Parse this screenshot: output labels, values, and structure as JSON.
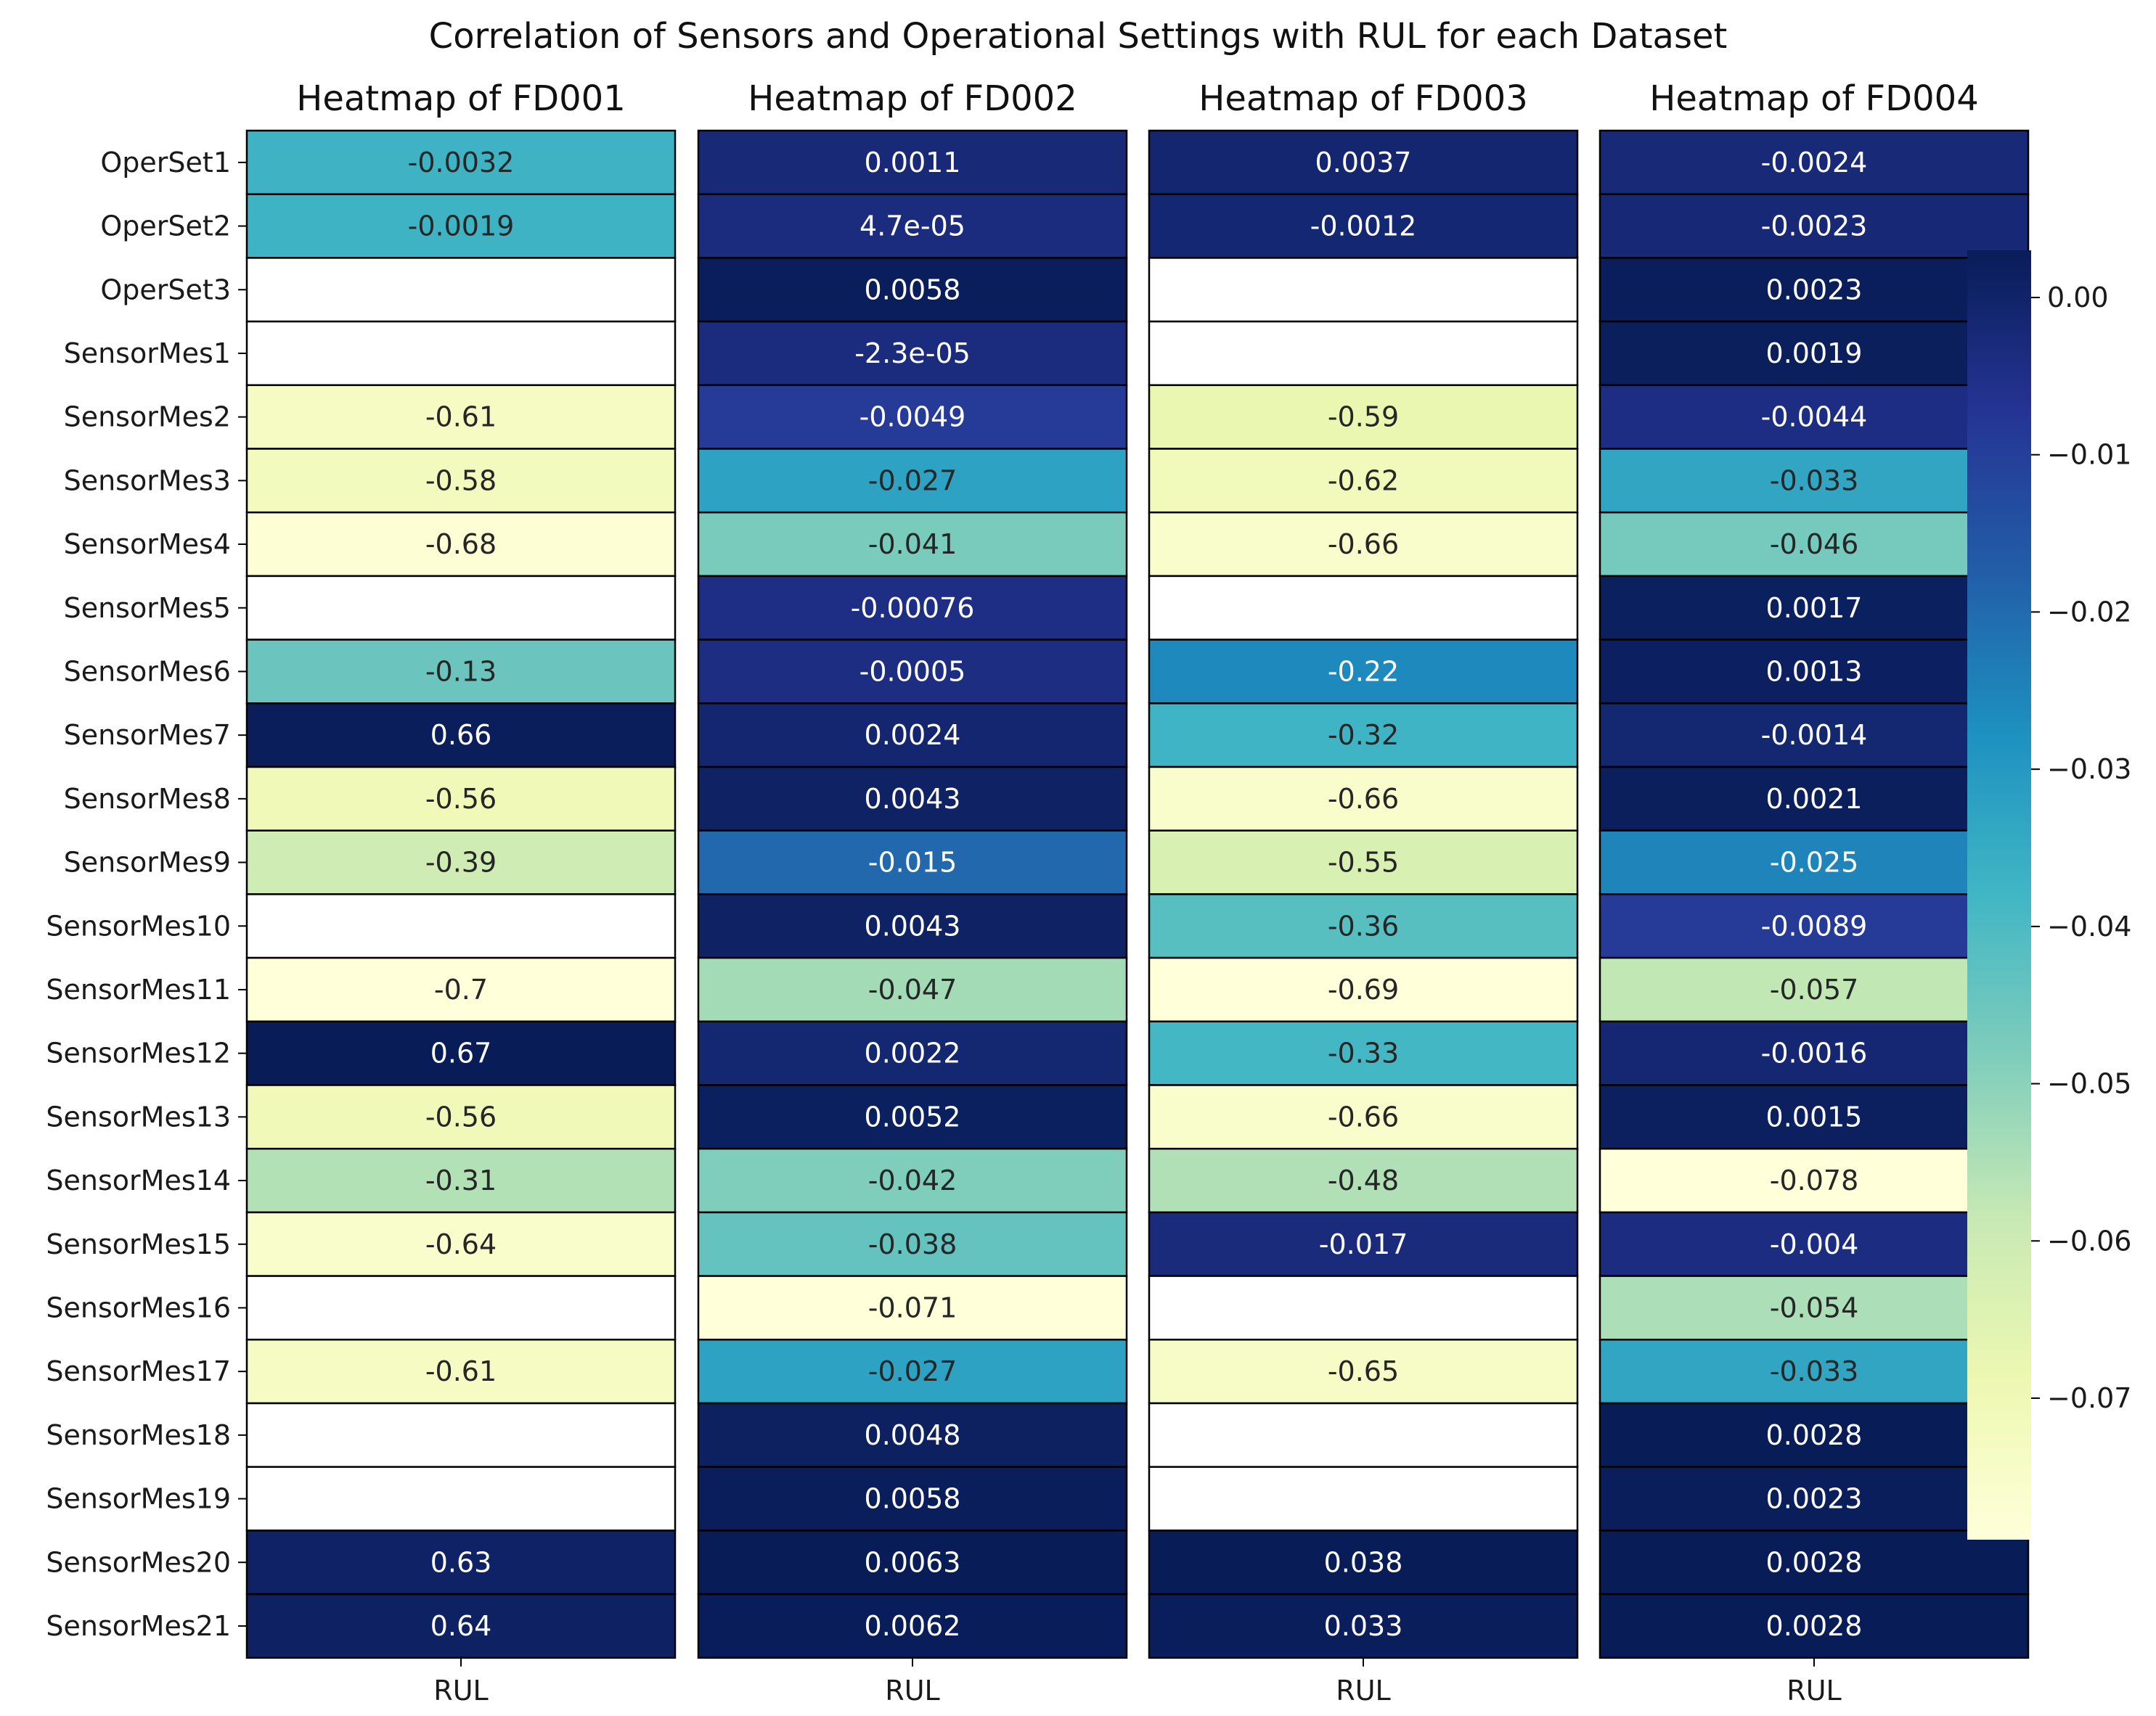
{
  "chart_data": {
    "type": "heatmap",
    "title": "Correlation of Sensors and Operational Settings with RUL for each Dataset",
    "rows": [
      "OperSet1",
      "OperSet2",
      "OperSet3",
      "SensorMes1",
      "SensorMes2",
      "SensorMes3",
      "SensorMes4",
      "SensorMes5",
      "SensorMes6",
      "SensorMes7",
      "SensorMes8",
      "SensorMes9",
      "SensorMes10",
      "SensorMes11",
      "SensorMes12",
      "SensorMes13",
      "SensorMes14",
      "SensorMes15",
      "SensorMes16",
      "SensorMes17",
      "SensorMes18",
      "SensorMes19",
      "SensorMes20",
      "SensorMes21"
    ],
    "colormap": {
      "name": "YlGnBu",
      "stops": [
        "#ffffd9",
        "#edf8b1",
        "#c7e9b4",
        "#7fcdbb",
        "#41b6c4",
        "#1d91c0",
        "#225ea8",
        "#253494",
        "#081d58"
      ]
    },
    "colorbar": {
      "range": [
        -0.079,
        0.003
      ],
      "ticks": [
        0.0,
        -0.01,
        -0.02,
        -0.03,
        -0.04,
        -0.05,
        -0.06,
        -0.07
      ],
      "tick_labels": [
        "0.00",
        "−0.01",
        "−0.02",
        "−0.03",
        "−0.04",
        "−0.05",
        "−0.06",
        "−0.07"
      ]
    },
    "panels": [
      {
        "title": "Heatmap of FD001",
        "xlabel": "RUL",
        "vmin": -0.7,
        "vmax": 0.67,
        "values": [
          -0.0032,
          -0.0019,
          null,
          null,
          -0.61,
          -0.58,
          -0.68,
          null,
          -0.13,
          0.66,
          -0.56,
          -0.39,
          null,
          -0.7,
          0.67,
          -0.56,
          -0.31,
          -0.64,
          null,
          -0.61,
          null,
          null,
          0.63,
          0.64
        ],
        "labels": [
          "-0.0032",
          "-0.0019",
          "",
          "",
          "-0.61",
          "-0.58",
          "-0.68",
          "",
          "-0.13",
          "0.66",
          "-0.56",
          "-0.39",
          "",
          "-0.7",
          "0.67",
          "-0.56",
          "-0.31",
          "-0.64",
          "",
          "-0.61",
          "",
          "",
          "0.63",
          "0.64"
        ]
      },
      {
        "title": "Heatmap of FD002",
        "xlabel": "RUL",
        "vmin": -0.071,
        "vmax": 0.0063,
        "values": [
          0.0011,
          4.7e-05,
          0.0058,
          -2.3e-05,
          -0.0049,
          -0.027,
          -0.041,
          -0.00076,
          -0.0005,
          0.0024,
          0.0043,
          -0.015,
          0.0043,
          -0.047,
          0.0022,
          0.0052,
          -0.042,
          -0.038,
          -0.071,
          -0.027,
          0.0048,
          0.0058,
          0.0063,
          0.0062
        ],
        "labels": [
          "0.0011",
          "4.7e-05",
          "0.0058",
          "-2.3e-05",
          "-0.0049",
          "-0.027",
          "-0.041",
          "-0.00076",
          "-0.0005",
          "0.0024",
          "0.0043",
          "-0.015",
          "0.0043",
          "-0.047",
          "0.0022",
          "0.0052",
          "-0.042",
          "-0.038",
          "-0.071",
          "-0.027",
          "0.0048",
          "0.0058",
          "0.0063",
          "0.0062"
        ]
      },
      {
        "title": "Heatmap of FD003",
        "xlabel": "RUL",
        "vmin": -0.69,
        "vmax": 0.038,
        "values": [
          0.0037,
          -0.0012,
          null,
          null,
          -0.59,
          -0.62,
          -0.66,
          null,
          -0.22,
          -0.32,
          -0.66,
          -0.55,
          -0.36,
          -0.69,
          -0.33,
          -0.66,
          -0.48,
          -0.017,
          null,
          -0.65,
          null,
          null,
          0.038,
          0.033
        ],
        "labels": [
          "0.0037",
          "-0.0012",
          "",
          "",
          "-0.59",
          "-0.62",
          "-0.66",
          "",
          "-0.22",
          "-0.32",
          "-0.66",
          "-0.55",
          "-0.36",
          "-0.69",
          "-0.33",
          "-0.66",
          "-0.48",
          "-0.017",
          "",
          "-0.65",
          "",
          "",
          "0.038",
          "0.033"
        ]
      },
      {
        "title": "Heatmap of FD004",
        "xlabel": "RUL",
        "vmin": -0.078,
        "vmax": 0.0028,
        "values": [
          -0.0024,
          -0.0023,
          0.0023,
          0.0019,
          -0.0044,
          -0.033,
          -0.046,
          0.0017,
          0.0013,
          -0.0014,
          0.0021,
          -0.025,
          -0.0089,
          -0.057,
          -0.0016,
          0.0015,
          -0.078,
          -0.004,
          -0.054,
          -0.033,
          0.0028,
          0.0023,
          0.0028,
          0.0028
        ],
        "labels": [
          "-0.0024",
          "-0.0023",
          "0.0023",
          "0.0019",
          "-0.0044",
          "-0.033",
          "-0.046",
          "0.0017",
          "0.0013",
          "-0.0014",
          "0.0021",
          "-0.025",
          "-0.0089",
          "-0.057",
          "-0.0016",
          "0.0015",
          "-0.078",
          "-0.004",
          "-0.054",
          "-0.033",
          "0.0028",
          "0.0023",
          "0.0028",
          "0.0028"
        ]
      }
    ]
  }
}
